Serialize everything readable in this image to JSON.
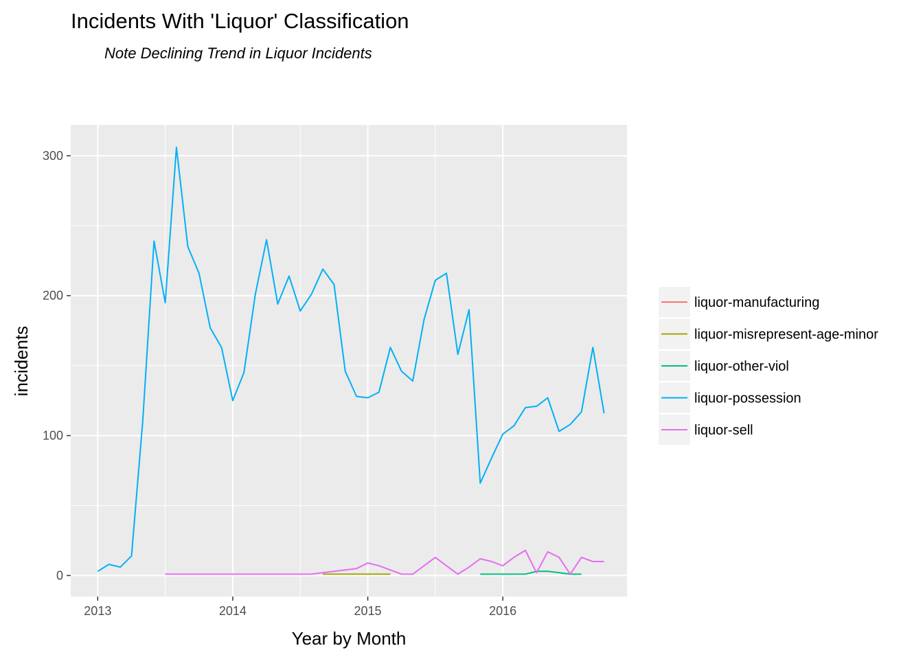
{
  "chart_data": {
    "type": "line",
    "title": "Incidents With 'Liquor' Classification",
    "subtitle": "Note Declining Trend in Liquor Incidents",
    "xlabel": "Year by Month",
    "ylabel": "incidents",
    "xlim": [
      2012.8,
      2016.92
    ],
    "ylim": [
      -15,
      322
    ],
    "x_ticks": [
      2013,
      2014,
      2015,
      2016
    ],
    "x_tick_labels": [
      "2013",
      "2014",
      "2015",
      "2016"
    ],
    "y_ticks": [
      0,
      100,
      200,
      300
    ],
    "y_tick_labels": [
      "0",
      "100",
      "200",
      "300"
    ],
    "grid": true,
    "legend_position": "right",
    "series": [
      {
        "name": "liquor-manufacturing",
        "color": "#F8766D",
        "x": [],
        "y": []
      },
      {
        "name": "liquor-misrepresent-age-minor",
        "color": "#A3A500",
        "x": [
          2014.667,
          2014.75,
          2014.833,
          2014.917,
          2015.0,
          2015.083,
          2015.167
        ],
        "y": [
          1,
          1,
          1,
          1,
          1,
          1,
          1
        ]
      },
      {
        "name": "liquor-other-viol",
        "color": "#00BF7D",
        "x": [
          2015.833,
          2015.917,
          2016.0,
          2016.083,
          2016.167,
          2016.25,
          2016.333,
          2016.417,
          2016.5,
          2016.583
        ],
        "y": [
          1,
          1,
          1,
          1,
          1,
          3,
          3,
          2,
          1,
          1
        ]
      },
      {
        "name": "liquor-possession",
        "color": "#00B0F6",
        "x": [
          2013.0,
          2013.083,
          2013.167,
          2013.25,
          2013.333,
          2013.417,
          2013.5,
          2013.583,
          2013.667,
          2013.75,
          2013.833,
          2013.917,
          2014.0,
          2014.083,
          2014.167,
          2014.25,
          2014.333,
          2014.417,
          2014.5,
          2014.583,
          2014.667,
          2014.75,
          2014.833,
          2014.917,
          2015.0,
          2015.083,
          2015.167,
          2015.25,
          2015.333,
          2015.417,
          2015.5,
          2015.583,
          2015.667,
          2015.75,
          2015.833,
          2015.917,
          2016.0,
          2016.083,
          2016.167,
          2016.25,
          2016.333,
          2016.417,
          2016.5,
          2016.583,
          2016.667,
          2016.75
        ],
        "y": [
          3,
          8,
          6,
          14,
          110,
          239,
          195,
          306,
          235,
          216,
          177,
          163,
          125,
          145,
          201,
          240,
          194,
          214,
          189,
          201,
          219,
          208,
          146,
          128,
          127,
          131,
          163,
          146,
          139,
          183,
          211,
          216,
          158,
          190,
          66,
          84,
          101,
          107,
          120,
          121,
          127,
          103,
          108,
          117,
          163,
          116
        ]
      },
      {
        "name": "liquor-sell",
        "color": "#E76BF3",
        "x": [
          2013.5,
          2013.583,
          2013.667,
          2013.75,
          2013.833,
          2013.917,
          2014.0,
          2014.083,
          2014.167,
          2014.25,
          2014.333,
          2014.417,
          2014.5,
          2014.583,
          2014.667,
          2014.75,
          2014.833,
          2014.917,
          2015.0,
          2015.083,
          2015.167,
          2015.25,
          2015.333,
          2015.417,
          2015.5,
          2015.583,
          2015.667,
          2015.75,
          2015.833,
          2015.917,
          2016.0,
          2016.083,
          2016.167,
          2016.25,
          2016.333,
          2016.417,
          2016.5,
          2016.583,
          2016.667,
          2016.75
        ],
        "y": [
          1,
          1,
          1,
          1,
          1,
          1,
          1,
          1,
          1,
          1,
          1,
          1,
          1,
          1,
          2,
          3,
          4,
          5,
          9,
          7,
          4,
          1,
          1,
          7,
          13,
          7,
          1,
          6,
          12,
          10,
          7,
          13,
          18,
          2,
          17,
          13,
          1,
          13,
          10,
          10
        ]
      }
    ]
  }
}
